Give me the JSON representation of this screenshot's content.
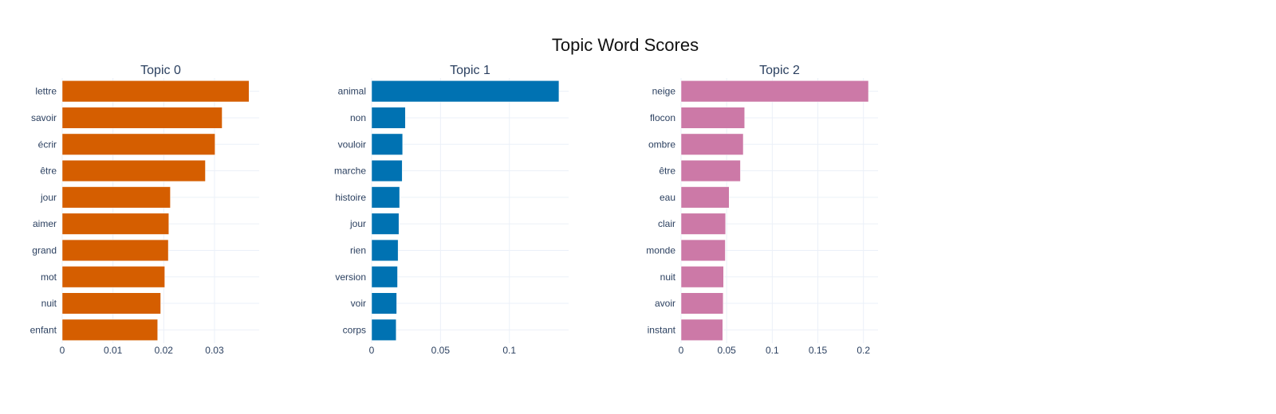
{
  "title": "Topic Word Scores",
  "chart_data": [
    {
      "type": "bar",
      "orientation": "horizontal",
      "title": "Topic 0",
      "color": "#D55E00",
      "categories": [
        "lettre",
        "savoir",
        "écrir",
        "être",
        "jour",
        "aimer",
        "grand",
        "mot",
        "nuit",
        "enfant"
      ],
      "values": [
        0.0368,
        0.0315,
        0.0301,
        0.0282,
        0.0213,
        0.021,
        0.0209,
        0.0202,
        0.0194,
        0.0188
      ],
      "xlim": [
        0,
        0.0388
      ],
      "xticks": [
        0,
        0.01,
        0.02,
        0.03
      ],
      "xtick_labels": [
        "0",
        "0.01",
        "0.02",
        "0.03"
      ],
      "grid": true
    },
    {
      "type": "bar",
      "orientation": "horizontal",
      "title": "Topic 1",
      "color": "#0072B2",
      "categories": [
        "animal",
        "non",
        "vouloir",
        "marche",
        "histoire",
        "jour",
        "rien",
        "version",
        "voir",
        "corps"
      ],
      "values": [
        0.136,
        0.0245,
        0.0225,
        0.0222,
        0.0203,
        0.0198,
        0.0192,
        0.0188,
        0.0182,
        0.0178
      ],
      "xlim": [
        0,
        0.143
      ],
      "xticks": [
        0,
        0.05,
        0.1
      ],
      "xtick_labels": [
        "0",
        "0.05",
        "0.1"
      ],
      "grid": true
    },
    {
      "type": "bar",
      "orientation": "horizontal",
      "title": "Topic 2",
      "color": "#CC79A7",
      "categories": [
        "neige",
        "flocon",
        "ombre",
        "être",
        "eau",
        "clair",
        "monde",
        "nuit",
        "avoir",
        "instant"
      ],
      "values": [
        0.2055,
        0.0697,
        0.0682,
        0.0651,
        0.0527,
        0.0488,
        0.0485,
        0.0466,
        0.0462,
        0.0457
      ],
      "xlim": [
        0,
        0.216
      ],
      "xticks": [
        0,
        0.05,
        0.1,
        0.15,
        0.2
      ],
      "xtick_labels": [
        "0",
        "0.05",
        "0.1",
        "0.15",
        "0.2"
      ],
      "grid": true
    }
  ]
}
